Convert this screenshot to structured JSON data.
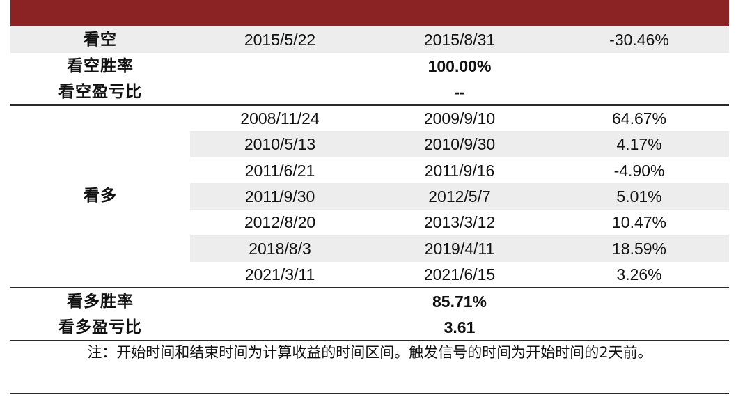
{
  "bear": {
    "label": "看空",
    "start": "2015/5/22",
    "end": "2015/8/31",
    "return": "-30.46%",
    "win_rate_label": "看空胜率",
    "win_rate": "100.00%",
    "pl_ratio_label": "看空盈亏比",
    "pl_ratio": "--"
  },
  "bull": {
    "label": "看多",
    "rows": [
      {
        "start": "2008/11/24",
        "end": "2009/9/10",
        "return": "64.67%"
      },
      {
        "start": "2010/5/13",
        "end": "2010/9/30",
        "return": "4.17%"
      },
      {
        "start": "2011/6/21",
        "end": "2011/9/16",
        "return": "-4.90%"
      },
      {
        "start": "2011/9/30",
        "end": "2012/5/7",
        "return": "5.01%"
      },
      {
        "start": "2012/8/20",
        "end": "2013/3/12",
        "return": "10.47%"
      },
      {
        "start": "2018/8/3",
        "end": "2019/4/11",
        "return": "18.59%"
      },
      {
        "start": "2021/3/11",
        "end": "2021/6/15",
        "return": "3.26%"
      }
    ],
    "win_rate_label": "看多胜率",
    "win_rate": "85.71%",
    "pl_ratio_label": "看多盈亏比",
    "pl_ratio": "3.61"
  },
  "note": "注：开始时间和结束时间为计算收益的时间区间。触发信号的时间为开始时间的2天前。",
  "colors": {
    "header": "#8B2324",
    "shade": "#EDEDED"
  }
}
